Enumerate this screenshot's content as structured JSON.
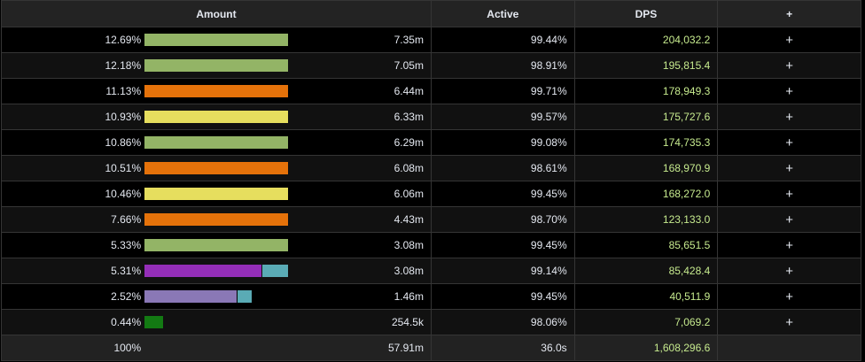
{
  "header": {
    "amount": "Amount",
    "active": "Active",
    "dps": "DPS",
    "add": "+"
  },
  "max_pct": 12.69,
  "rows": [
    {
      "pct": "12.69%",
      "value": 12.69,
      "segments": [
        {
          "share": 1,
          "color": "#93b466"
        }
      ],
      "amount": "7.35m",
      "active": "99.44%",
      "dps": "204,032.2"
    },
    {
      "pct": "12.18%",
      "value": 12.18,
      "segments": [
        {
          "share": 1,
          "color": "#93b466"
        }
      ],
      "amount": "7.05m",
      "active": "98.91%",
      "dps": "195,815.4"
    },
    {
      "pct": "11.13%",
      "value": 11.13,
      "segments": [
        {
          "share": 1,
          "color": "#e5720a"
        }
      ],
      "amount": "6.44m",
      "active": "99.71%",
      "dps": "178,949.3"
    },
    {
      "pct": "10.93%",
      "value": 10.93,
      "segments": [
        {
          "share": 1,
          "color": "#e6de5e"
        }
      ],
      "amount": "6.33m",
      "active": "99.57%",
      "dps": "175,727.6"
    },
    {
      "pct": "10.86%",
      "value": 10.86,
      "segments": [
        {
          "share": 1,
          "color": "#93b466"
        }
      ],
      "amount": "6.29m",
      "active": "99.08%",
      "dps": "174,735.3"
    },
    {
      "pct": "10.51%",
      "value": 10.51,
      "segments": [
        {
          "share": 1,
          "color": "#e5720a"
        }
      ],
      "amount": "6.08m",
      "active": "98.61%",
      "dps": "168,970.9"
    },
    {
      "pct": "10.46%",
      "value": 10.46,
      "segments": [
        {
          "share": 1,
          "color": "#e6de5e"
        }
      ],
      "amount": "6.06m",
      "active": "99.45%",
      "dps": "168,272.0"
    },
    {
      "pct": "7.66%",
      "value": 7.66,
      "segments": [
        {
          "share": 1,
          "color": "#e5720a"
        }
      ],
      "amount": "4.43m",
      "active": "98.70%",
      "dps": "123,133.0"
    },
    {
      "pct": "5.33%",
      "value": 5.33,
      "segments": [
        {
          "share": 1,
          "color": "#93b466"
        }
      ],
      "amount": "3.08m",
      "active": "99.45%",
      "dps": "85,651.5"
    },
    {
      "pct": "5.31%",
      "value": 5.31,
      "segments": [
        {
          "share": 0.82,
          "color": "#942eb8"
        },
        {
          "share": 0.18,
          "color": "#5aabb5"
        }
      ],
      "amount": "3.08m",
      "active": "99.14%",
      "dps": "85,428.4"
    },
    {
      "pct": "2.52%",
      "value": 2.52,
      "segments": [
        {
          "share": 0.87,
          "color": "#8a78b6"
        },
        {
          "share": 0.13,
          "color": "#5aabb5"
        }
      ],
      "amount": "1.46m",
      "active": "99.45%",
      "dps": "40,511.9"
    },
    {
      "pct": "0.44%",
      "value": 0.44,
      "segments": [
        {
          "share": 1,
          "color": "#137a13"
        }
      ],
      "amount": "254.5k",
      "active": "98.06%",
      "dps": "7,069.2"
    }
  ],
  "total": {
    "pct": "100%",
    "amount": "57.91m",
    "active": "36.0s",
    "dps": "1,608,296.6"
  }
}
